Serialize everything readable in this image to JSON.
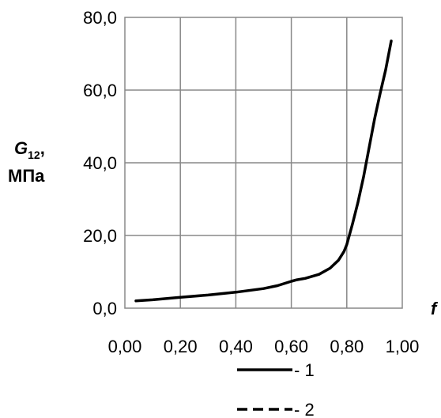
{
  "chart_data": {
    "type": "line",
    "ylabel_main": "G",
    "ylabel_sub": "12",
    "ylabel_comma": ",",
    "ylabel_unit": "МПа",
    "xlabel": "f",
    "xlim": [
      0,
      1
    ],
    "ylim": [
      0,
      80
    ],
    "grid": true,
    "x_ticks": [
      "0,00",
      "0,20",
      "0,40",
      "0,60",
      "0,80",
      "1,00"
    ],
    "y_ticks": [
      "0,0",
      "20,0",
      "40,0",
      "60,0",
      "80,0"
    ],
    "legend_position": "bottom-center",
    "series": [
      {
        "name": "- 1",
        "style": "solid",
        "x": [
          0.04,
          0.1,
          0.2,
          0.3,
          0.4,
          0.5,
          0.55,
          0.6,
          0.62,
          0.65,
          0.7,
          0.74,
          0.77,
          0.79,
          0.8,
          0.82,
          0.84,
          0.86,
          0.88,
          0.9,
          0.92,
          0.94,
          0.96
        ],
        "y": [
          2.0,
          2.3,
          3.0,
          3.6,
          4.4,
          5.4,
          6.2,
          7.4,
          7.8,
          8.2,
          9.3,
          11.0,
          13.2,
          15.6,
          17.5,
          23.0,
          29.0,
          36.0,
          44.0,
          52.0,
          59.0,
          65.5,
          73.5
        ]
      },
      {
        "name": "- 2",
        "style": "dashed",
        "x": [],
        "y": []
      }
    ]
  }
}
